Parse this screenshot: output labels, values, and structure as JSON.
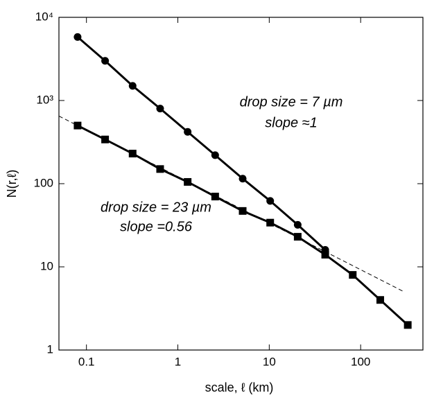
{
  "chart_data": {
    "type": "line",
    "x_label": "scale, ℓ (km)",
    "y_label": "N(r,ℓ)",
    "log_x": true,
    "log_y": true,
    "xlim": [
      0.05,
      480
    ],
    "ylim": [
      1,
      10000
    ],
    "xticks": [
      0.1,
      1,
      10,
      100
    ],
    "yticks": [
      1,
      10,
      100,
      {
        "value": 1000,
        "label": "10³"
      },
      {
        "value": 10000,
        "label": "10⁴"
      }
    ],
    "series": [
      {
        "name": "drop size = 7 µm",
        "color": "#000000",
        "marker": "circle",
        "x": [
          0.08,
          0.16,
          0.32,
          0.64,
          1.28,
          2.56,
          5.12,
          10.24,
          20.48,
          40.96
        ],
        "values": [
          5800,
          3000,
          1500,
          800,
          420,
          220,
          115,
          62,
          32,
          16
        ]
      },
      {
        "name": "drop size = 23 µm",
        "color": "#000000",
        "marker": "square",
        "x": [
          0.08,
          0.16,
          0.32,
          0.64,
          1.28,
          2.56,
          5.12,
          10.24,
          20.48,
          40.96,
          81.92,
          163.84,
          327.68
        ],
        "values": [
          500,
          340,
          230,
          150,
          105,
          70,
          47,
          34,
          23,
          14,
          8,
          4,
          2
        ]
      },
      {
        "color": "#000000",
        "dashed": true,
        "x": [
          0.05,
          300
        ],
        "values": [
          650,
          5
        ]
      }
    ],
    "annotations": [
      "slope ≈1",
      "slope =0.56"
    ]
  }
}
